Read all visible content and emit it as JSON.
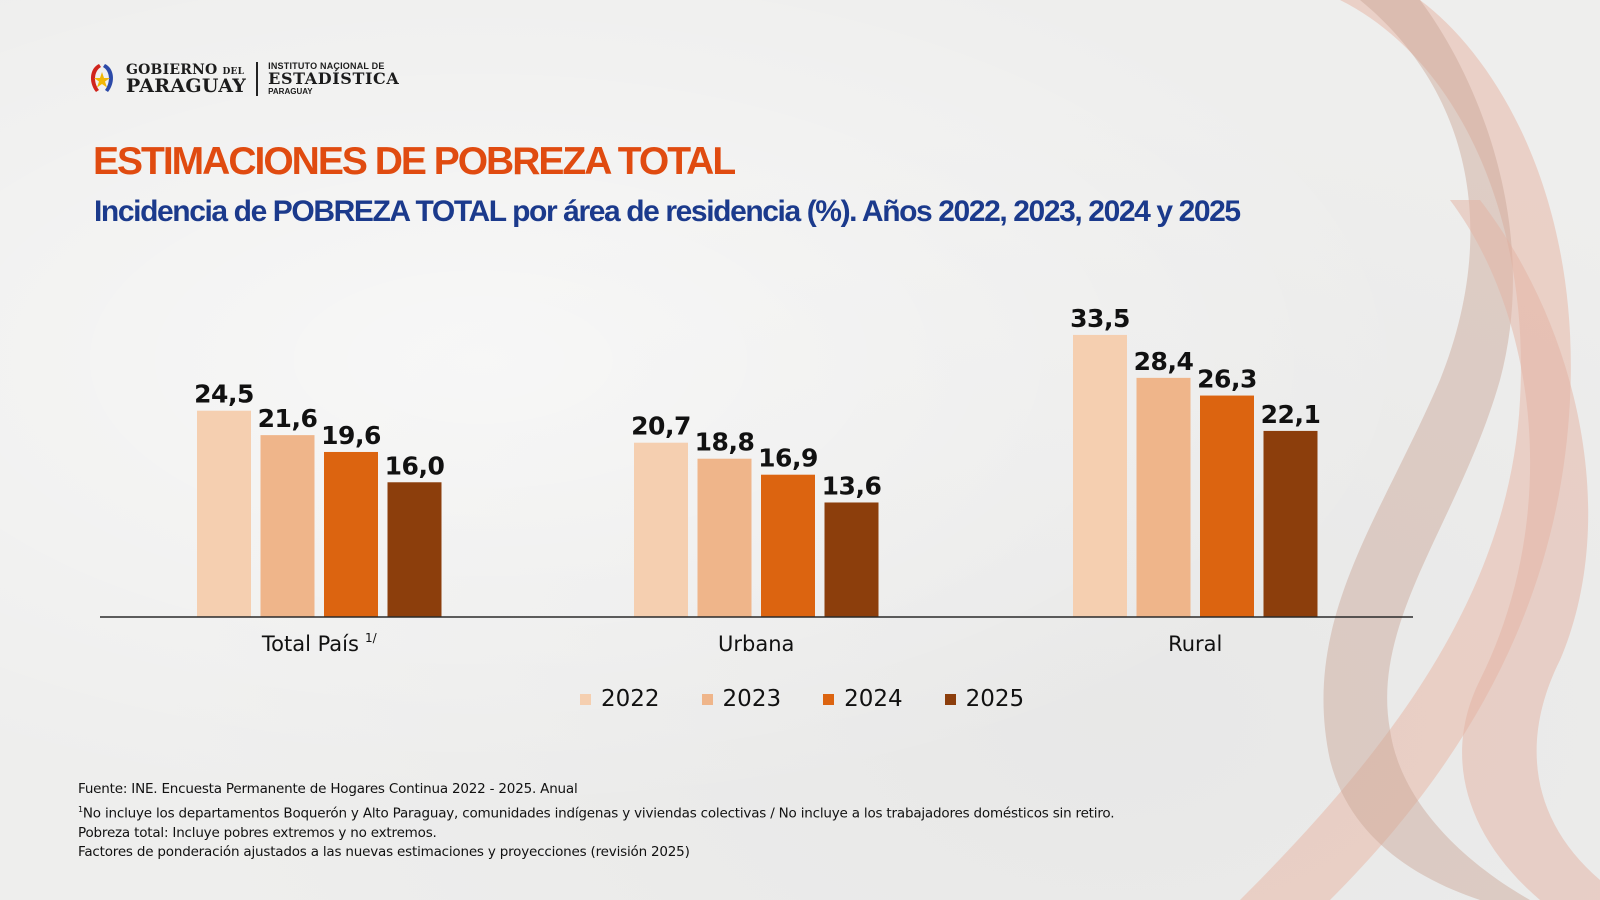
{
  "logo": {
    "gov_line1": "GOBIERNO",
    "gov_line1_small": "DEL",
    "gov_line2": "PARAGUAY",
    "ine_line1": "INSTITUTO NACIONAL DE",
    "ine_line2": "ESTADÍSTICA",
    "ine_line3": "PARAGUAY"
  },
  "header": {
    "title": "ESTIMACIONES DE POBREZA TOTAL",
    "subtitle": "Incidencia de POBREZA TOTAL  por área de residencia (%). Años 2022, 2023, 2024 y 2025"
  },
  "colors": {
    "title": "#e04b10",
    "subtitle": "#1b3a8c",
    "series": [
      "#f5cfb0",
      "#efb58a",
      "#dc6410",
      "#8c3e0c"
    ]
  },
  "chart_data": {
    "type": "bar",
    "title": "Incidencia de POBREZA TOTAL por área de residencia (%). Años 2022, 2023, 2024 y 2025",
    "xlabel": "",
    "ylabel": "",
    "ylim": [
      0,
      36
    ],
    "grid": false,
    "legend_position": "bottom",
    "categories": [
      "Total País",
      "Urbana",
      "Rural"
    ],
    "category_superscripts": [
      "1/",
      "",
      ""
    ],
    "series": [
      {
        "name": "2022",
        "values": [
          24.5,
          20.7,
          33.5
        ],
        "labels": [
          "24,5",
          "20,7",
          "33,5"
        ]
      },
      {
        "name": "2023",
        "values": [
          21.6,
          18.8,
          28.4
        ],
        "labels": [
          "21,6",
          "18,8",
          "28,4"
        ]
      },
      {
        "name": "2024",
        "values": [
          19.6,
          16.9,
          26.3
        ],
        "labels": [
          "19,6",
          "16,9",
          "26,3"
        ]
      },
      {
        "name": "2025",
        "values": [
          16.0,
          13.6,
          22.1
        ],
        "labels": [
          "16,0",
          "13,6",
          "22,1"
        ]
      }
    ]
  },
  "footnotes": {
    "source": "Fuente: INE. Encuesta Permanente de Hogares  Continua  2022 - 2025. Anual",
    "note1_marker": "1",
    "note1": "No incluye los departamentos  Boquerón  y Alto Paraguay,  comunidades  indígenas  y viviendas  colectivas / No incluye a los trabajadores  domésticos  sin retiro.",
    "note2": "Pobreza total: Incluye pobres  extremos  y no extremos.",
    "note3": "Factores de ponderación  ajustados a las nuevas  estimaciones  y proyecciones  (revisión  2025)"
  }
}
